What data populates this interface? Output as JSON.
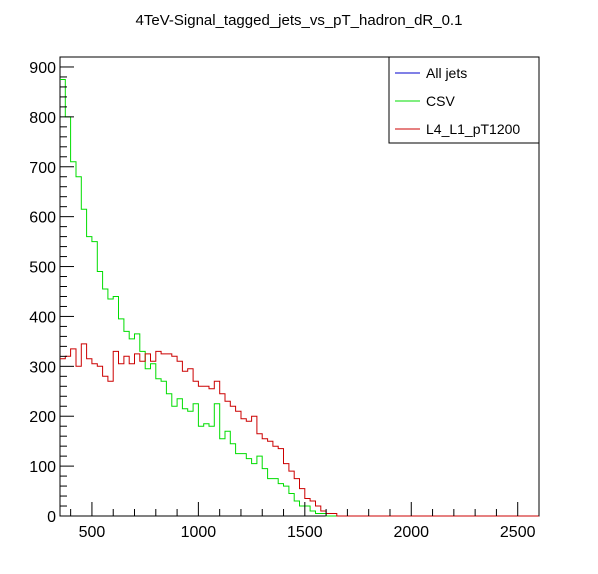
{
  "title": "4TeV-Signal_tagged_jets_vs_pT_hadron_dR_0.1",
  "chart_data": {
    "type": "line",
    "style": "step-histogram",
    "xlim": [
      350,
      2600
    ],
    "ylim": [
      0,
      920
    ],
    "x_ticks": [
      500,
      1000,
      1500,
      2000,
      2500
    ],
    "y_ticks": [
      0,
      100,
      200,
      300,
      400,
      500,
      600,
      700,
      800,
      900
    ],
    "bin_width": 25,
    "legend_placement": "top-right",
    "grid": false,
    "bin_edges": [
      350,
      375,
      400,
      425,
      450,
      475,
      500,
      525,
      550,
      575,
      600,
      625,
      650,
      675,
      700,
      725,
      750,
      775,
      800,
      825,
      850,
      875,
      900,
      925,
      950,
      975,
      1000,
      1025,
      1050,
      1075,
      1100,
      1125,
      1150,
      1175,
      1200,
      1225,
      1250,
      1275,
      1300,
      1325,
      1350,
      1375,
      1400,
      1425,
      1450,
      1475,
      1500,
      1525,
      1550,
      1575,
      1600,
      1625,
      1650,
      1675,
      1700,
      1725,
      1750,
      1775,
      1800,
      1825,
      1850,
      1875,
      1900,
      1925,
      1950,
      1975,
      2000,
      2025,
      2050,
      2075,
      2100,
      2125,
      2150,
      2175,
      2200,
      2225,
      2250,
      2275,
      2300,
      2325,
      2350,
      2375,
      2400,
      2425,
      2450,
      2475,
      2500,
      2525,
      2550,
      2575,
      2600
    ],
    "series": [
      {
        "name": "All jets",
        "color": "#0000cc",
        "values": []
      },
      {
        "name": "CSV",
        "color": "#00dd00",
        "values": [
          875,
          800,
          710,
          680,
          615,
          560,
          550,
          490,
          455,
          435,
          440,
          395,
          370,
          355,
          365,
          330,
          295,
          305,
          275,
          270,
          245,
          220,
          235,
          215,
          210,
          225,
          180,
          185,
          180,
          225,
          155,
          170,
          145,
          125,
          125,
          115,
          105,
          120,
          95,
          75,
          75,
          65,
          60,
          45,
          30,
          20,
          20,
          10,
          5,
          5,
          0,
          0,
          0,
          0,
          0,
          0,
          0,
          0,
          0,
          0,
          0,
          0,
          0,
          0,
          0,
          0,
          0,
          0,
          0,
          0,
          0,
          0,
          0,
          0,
          0,
          0,
          0,
          0,
          0,
          0,
          0,
          0,
          0,
          0,
          0,
          0,
          0,
          0,
          0,
          0
        ]
      },
      {
        "name": "L4_L1_pT1200",
        "color": "#cc0000",
        "values": [
          315,
          320,
          335,
          300,
          345,
          315,
          305,
          300,
          280,
          270,
          330,
          305,
          320,
          305,
          325,
          310,
          325,
          310,
          330,
          325,
          325,
          320,
          310,
          290,
          295,
          270,
          260,
          260,
          255,
          270,
          245,
          230,
          220,
          210,
          195,
          190,
          200,
          165,
          155,
          150,
          140,
          135,
          105,
          90,
          75,
          55,
          35,
          30,
          20,
          10,
          5,
          5,
          0,
          0,
          0,
          0,
          0,
          0,
          0,
          0,
          0,
          0,
          0,
          0,
          0,
          0,
          0,
          0,
          0,
          0,
          0,
          0,
          0,
          0,
          0,
          0,
          0,
          0,
          0,
          0,
          0,
          0,
          0,
          0,
          0,
          0,
          0,
          0,
          0,
          0
        ]
      }
    ]
  }
}
